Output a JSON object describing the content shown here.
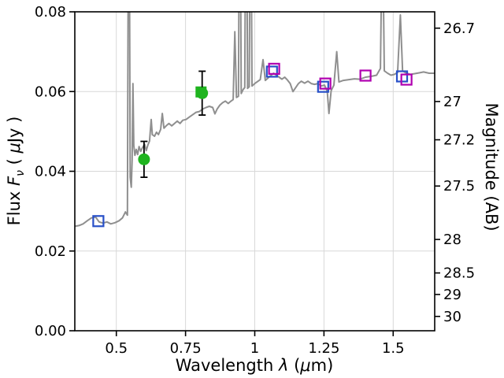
{
  "chart_data": {
    "type": "line",
    "title": "",
    "xlabel": "Wavelength λ (μm)",
    "xlabel_parts": {
      "a": "Wavelength ",
      "b": "λ",
      "c": " (",
      "d": "μ",
      "e": "m)"
    },
    "ylabel_left": "Flux Fν ( μJy )",
    "ylabel_left_parts": {
      "a": "Flux ",
      "b": "F",
      "c": "ν",
      "d": " ( ",
      "e": "μ",
      "f": "Jy )"
    },
    "ylabel_right": "Magnitude (AB)",
    "xlim": [
      0.35,
      1.65
    ],
    "ylim_flux": [
      0.0,
      0.08
    ],
    "grid": true,
    "legend": "none",
    "x_ticks": [
      0.5,
      0.75,
      1.0,
      1.25,
      1.5
    ],
    "x_tick_labels": [
      "0.5",
      "0.75",
      "1",
      "1.25",
      "1.5"
    ],
    "y_ticks": [
      0.0,
      0.02,
      0.04,
      0.06,
      0.08
    ],
    "y_tick_labels": [
      "0.00",
      "0.02",
      "0.04",
      "0.06",
      "0.08"
    ],
    "right_mag_tick_labels": [
      "26.7",
      "27",
      "27.2",
      "27.5",
      "28",
      "28.5",
      "29",
      "30"
    ],
    "right_mag_tick_flux": [
      0.0759,
      0.0575,
      0.0479,
      0.0363,
      0.0229,
      0.0145,
      0.0091,
      0.0036
    ],
    "colors": {
      "spectrum": "#8f8f8f",
      "blue": "#2850c8",
      "purple": "#b000b0",
      "green": "#1fb41f",
      "errorbar": "#000000",
      "grid": "#d8d8d8",
      "axis": "#000000"
    },
    "series": {
      "spectrum": {
        "name": "model-spectrum",
        "color": "#8f8f8f",
        "points": [
          [
            0.35,
            0.0262
          ],
          [
            0.365,
            0.0264
          ],
          [
            0.38,
            0.0268
          ],
          [
            0.395,
            0.0276
          ],
          [
            0.41,
            0.0283
          ],
          [
            0.425,
            0.0285
          ],
          [
            0.438,
            0.0273
          ],
          [
            0.452,
            0.027
          ],
          [
            0.466,
            0.0273
          ],
          [
            0.48,
            0.0268
          ],
          [
            0.495,
            0.0271
          ],
          [
            0.51,
            0.0276
          ],
          [
            0.522,
            0.0283
          ],
          [
            0.533,
            0.0298
          ],
          [
            0.54,
            0.029
          ],
          [
            0.545,
            0.14
          ],
          [
            0.55,
            0.0385
          ],
          [
            0.554,
            0.036
          ],
          [
            0.557,
            0.043
          ],
          [
            0.56,
            0.062
          ],
          [
            0.563,
            0.0465
          ],
          [
            0.567,
            0.044
          ],
          [
            0.572,
            0.0455
          ],
          [
            0.577,
            0.0442
          ],
          [
            0.582,
            0.0462
          ],
          [
            0.588,
            0.045
          ],
          [
            0.595,
            0.046
          ],
          [
            0.602,
            0.0468
          ],
          [
            0.608,
            0.0452
          ],
          [
            0.614,
            0.0466
          ],
          [
            0.62,
            0.0476
          ],
          [
            0.626,
            0.053
          ],
          [
            0.63,
            0.0492
          ],
          [
            0.638,
            0.0488
          ],
          [
            0.645,
            0.0498
          ],
          [
            0.652,
            0.0492
          ],
          [
            0.66,
            0.0505
          ],
          [
            0.666,
            0.0545
          ],
          [
            0.672,
            0.0508
          ],
          [
            0.68,
            0.0514
          ],
          [
            0.69,
            0.052
          ],
          [
            0.7,
            0.0514
          ],
          [
            0.71,
            0.052
          ],
          [
            0.72,
            0.0526
          ],
          [
            0.73,
            0.052
          ],
          [
            0.74,
            0.0528
          ],
          [
            0.752,
            0.053
          ],
          [
            0.764,
            0.0536
          ],
          [
            0.776,
            0.0542
          ],
          [
            0.788,
            0.0548
          ],
          [
            0.8,
            0.055
          ],
          [
            0.812,
            0.0556
          ],
          [
            0.824,
            0.056
          ],
          [
            0.836,
            0.0563
          ],
          [
            0.848,
            0.056
          ],
          [
            0.856,
            0.0544
          ],
          [
            0.864,
            0.0556
          ],
          [
            0.874,
            0.0566
          ],
          [
            0.884,
            0.0572
          ],
          [
            0.894,
            0.0576
          ],
          [
            0.904,
            0.057
          ],
          [
            0.914,
            0.0576
          ],
          [
            0.922,
            0.058
          ],
          [
            0.928,
            0.075
          ],
          [
            0.934,
            0.0585
          ],
          [
            0.941,
            0.0588
          ],
          [
            0.946,
            0.13
          ],
          [
            0.951,
            0.0595
          ],
          [
            0.958,
            0.0605
          ],
          [
            0.964,
            0.061
          ],
          [
            0.969,
            0.13
          ],
          [
            0.974,
            0.0608
          ],
          [
            0.98,
            0.0612
          ],
          [
            0.985,
            0.125
          ],
          [
            0.99,
            0.0614
          ],
          [
            1.0,
            0.062
          ],
          [
            1.01,
            0.0625
          ],
          [
            1.02,
            0.063
          ],
          [
            1.03,
            0.068
          ],
          [
            1.038,
            0.0628
          ],
          [
            1.048,
            0.0634
          ],
          [
            1.058,
            0.064
          ],
          [
            1.068,
            0.0646
          ],
          [
            1.078,
            0.0641
          ],
          [
            1.088,
            0.0636
          ],
          [
            1.098,
            0.0631
          ],
          [
            1.108,
            0.0636
          ],
          [
            1.118,
            0.0629
          ],
          [
            1.128,
            0.062
          ],
          [
            1.138,
            0.06
          ],
          [
            1.148,
            0.061
          ],
          [
            1.158,
            0.062
          ],
          [
            1.168,
            0.0626
          ],
          [
            1.18,
            0.0621
          ],
          [
            1.192,
            0.0626
          ],
          [
            1.204,
            0.062
          ],
          [
            1.216,
            0.0618
          ],
          [
            1.228,
            0.062
          ],
          [
            1.24,
            0.0614
          ],
          [
            1.252,
            0.0616
          ],
          [
            1.262,
            0.06
          ],
          [
            1.268,
            0.0545
          ],
          [
            1.276,
            0.0602
          ],
          [
            1.286,
            0.0616
          ],
          [
            1.296,
            0.07
          ],
          [
            1.304,
            0.0624
          ],
          [
            1.32,
            0.0628
          ],
          [
            1.34,
            0.063
          ],
          [
            1.36,
            0.0632
          ],
          [
            1.38,
            0.0631
          ],
          [
            1.4,
            0.0636
          ],
          [
            1.42,
            0.0638
          ],
          [
            1.44,
            0.0641
          ],
          [
            1.454,
            0.0658
          ],
          [
            1.461,
            0.105
          ],
          [
            1.468,
            0.0652
          ],
          [
            1.48,
            0.0646
          ],
          [
            1.492,
            0.0641
          ],
          [
            1.504,
            0.0643
          ],
          [
            1.516,
            0.0648
          ],
          [
            1.526,
            0.0792
          ],
          [
            1.534,
            0.0652
          ],
          [
            1.548,
            0.0646
          ],
          [
            1.562,
            0.0643
          ],
          [
            1.578,
            0.0645
          ],
          [
            1.594,
            0.0647
          ],
          [
            1.61,
            0.0649
          ],
          [
            1.63,
            0.0646
          ],
          [
            1.65,
            0.0646
          ]
        ]
      },
      "photometry": [
        {
          "name": "green-filled-square",
          "marker": "filled-square",
          "color": "#1fb41f",
          "points": [
            [
              0.806,
              0.0599
            ]
          ]
        },
        {
          "name": "green-circles-with-errors",
          "marker": "filled-circle",
          "color": "#1fb41f",
          "points": [
            [
              0.6,
              0.043
            ],
            [
              0.81,
              0.0596
            ]
          ],
          "yerr": [
            0.0045,
            0.0055
          ]
        },
        {
          "name": "blue-open-squares",
          "marker": "open-square",
          "color": "#2850c8",
          "points": [
            [
              0.435,
              0.0275
            ],
            [
              1.062,
              0.065
            ],
            [
              1.247,
              0.0612
            ],
            [
              1.532,
              0.0638
            ]
          ]
        },
        {
          "name": "purple-open-squares",
          "marker": "open-square",
          "color": "#b000b0",
          "points": [
            [
              1.07,
              0.0657
            ],
            [
              1.255,
              0.062
            ],
            [
              1.4,
              0.064
            ],
            [
              1.548,
              0.063
            ]
          ]
        }
      ]
    }
  }
}
